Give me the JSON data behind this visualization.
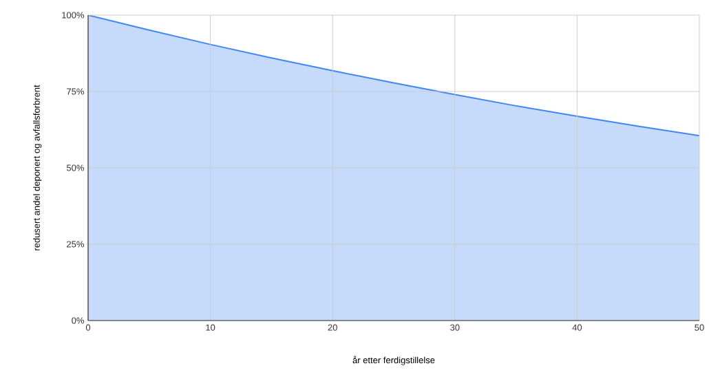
{
  "chart_data": {
    "type": "area",
    "xlabel": "år etter ferdigstillelse",
    "ylabel": "redusert andel deponert og avfallsforbrent",
    "x": [
      0,
      5,
      10,
      15,
      20,
      25,
      30,
      35,
      40,
      45,
      50
    ],
    "values": [
      100,
      95.1,
      90.4,
      86.0,
      81.8,
      77.8,
      74.0,
      70.3,
      66.9,
      63.6,
      60.5
    ],
    "color": "#4285f4",
    "xlim": [
      0,
      50
    ],
    "xticks": [
      0,
      10,
      20,
      30,
      40,
      50
    ],
    "ylim": [
      0,
      100
    ],
    "yticks": [
      {
        "value": 0,
        "label": "0%"
      },
      {
        "value": 25,
        "label": "25%"
      },
      {
        "value": 50,
        "label": "50%"
      },
      {
        "value": 75,
        "label": "75%"
      },
      {
        "value": 100,
        "label": "100%"
      }
    ],
    "grid": true
  }
}
